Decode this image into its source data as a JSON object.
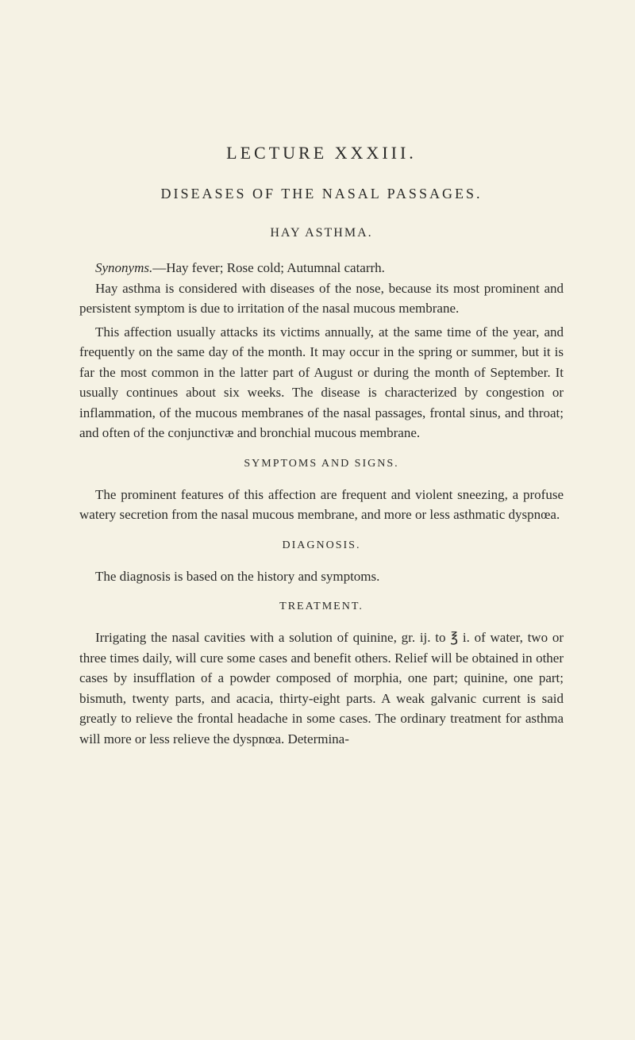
{
  "page": {
    "background_color": "#f5f2e4",
    "text_color": "#2a2a28",
    "font_family": "Georgia, Times New Roman, serif",
    "body_fontsize": 17,
    "title_fontsize": 22,
    "chapter_fontsize": 18,
    "section_fontsize": 14
  },
  "lecture_title": "LECTURE XXXIII.",
  "chapter_title": "DISEASES OF THE NASAL PASSAGES.",
  "disease_title": "HAY ASTHMA.",
  "synonyms": {
    "label": "Synonyms.",
    "text": "—Hay fever; Rose cold; Autumnal catarrh."
  },
  "intro_paragraphs": [
    "Hay asthma is considered with diseases of the nose, because its most prominent and persistent symptom is due to irritation of the nasal mucous membrane.",
    "This affection usually attacks its victims annually, at the same time of the year, and frequently on the same day of the month. It may occur in the spring or summer, but it is far the most common in the latter part of August or during the month of September. It usually continues about six weeks. The disease is characterized by congestion or inflammation, of the mucous membranes of the nasal passages, frontal sinus, and throat; and often of the conjunctivæ and bronchial mucous membrane."
  ],
  "sections": {
    "symptoms": {
      "heading": "SYMPTOMS AND SIGNS.",
      "paragraphs": [
        "The prominent features of this affection are frequent and violent sneezing, a profuse watery secretion from the nasal mucous membrane, and more or less asthmatic dyspnœa."
      ]
    },
    "diagnosis": {
      "heading": "DIAGNOSIS.",
      "paragraphs": [
        "The diagnosis is based on the history and symptoms."
      ]
    },
    "treatment": {
      "heading": "TREATMENT.",
      "paragraphs": [
        "Irrigating the nasal cavities with a solution of quinine, gr. ij. to ℥ i. of water, two or three times daily, will cure some cases and benefit others. Relief will be obtained in other cases by insufflation of a powder composed of morphia, one part; quinine, one part; bismuth, twenty parts, and acacia, thirty-eight parts. A weak galvanic current is said greatly to relieve the frontal headache in some cases. The ordinary treatment for asthma will more or less relieve the dyspnœa. Determina-"
      ]
    }
  }
}
